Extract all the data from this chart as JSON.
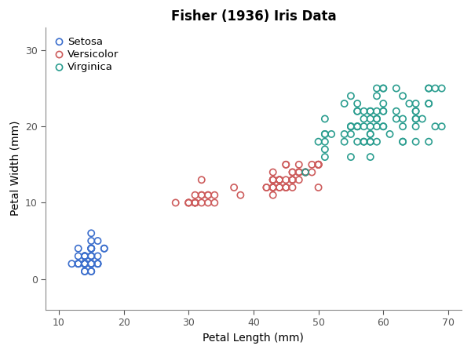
{
  "title": "Fisher (1936) Iris Data",
  "xlabel": "Petal Length (mm)",
  "ylabel": "Petal Width (mm)",
  "xlim": [
    8,
    72
  ],
  "ylim": [
    -4,
    33
  ],
  "xticks": [
    10,
    20,
    30,
    40,
    50,
    60,
    70
  ],
  "yticks": [
    0,
    10,
    20,
    30
  ],
  "legend_frameon": false,
  "species": {
    "Setosa": {
      "color": "#3c6fcd",
      "petal_length": [
        14,
        14,
        13,
        15,
        14,
        17,
        14,
        15,
        14,
        15,
        15,
        14,
        14,
        14,
        16,
        17,
        15,
        14,
        15,
        14,
        13,
        15,
        14,
        16,
        14,
        16,
        15,
        14,
        15,
        14,
        14,
        15,
        14,
        15,
        16,
        16,
        14,
        14,
        14,
        15,
        15,
        13,
        14,
        15,
        15,
        14,
        12,
        13,
        13,
        15
      ],
      "petal_width": [
        2,
        2,
        2,
        2,
        2,
        4,
        3,
        2,
        2,
        1,
        2,
        2,
        1,
        1,
        2,
        4,
        4,
        3,
        3,
        3,
        2,
        4,
        2,
        5,
        2,
        3,
        4,
        2,
        2,
        2,
        2,
        5,
        2,
        1,
        2,
        2,
        3,
        2,
        2,
        3,
        3,
        3,
        2,
        6,
        4,
        3,
        2,
        2,
        4,
        2
      ]
    },
    "Versicolor": {
      "color": "#cd5c5c",
      "petal_length": [
        47,
        45,
        49,
        43,
        44,
        48,
        50,
        44,
        48,
        43,
        43,
        42,
        43,
        46,
        47,
        43,
        46,
        44,
        50,
        46,
        46,
        47,
        43,
        45,
        46,
        45,
        47,
        44,
        50,
        45,
        44,
        45,
        46,
        43,
        47,
        48,
        48,
        43,
        50,
        49,
        47,
        42,
        43,
        44,
        50,
        43,
        46,
        45,
        50,
        38,
        32,
        31,
        31,
        34,
        32,
        31,
        31,
        33,
        34,
        32,
        33,
        37,
        31,
        30,
        32,
        33,
        28,
        30,
        30
      ],
      "petal_width": [
        14,
        15,
        15,
        13,
        13,
        14,
        15,
        13,
        14,
        13,
        14,
        12,
        13,
        14,
        14,
        13,
        14,
        13,
        15,
        12,
        13,
        15,
        11,
        13,
        13,
        12,
        14,
        12,
        15,
        12,
        12,
        12,
        13,
        12,
        13,
        14,
        14,
        12,
        15,
        14,
        14,
        12,
        12,
        13,
        15,
        12,
        13,
        15,
        12,
        11,
        13,
        10,
        10,
        10,
        10,
        10,
        10,
        10,
        11,
        11,
        11,
        12,
        11,
        10,
        11,
        11,
        10,
        10,
        10
      ]
    },
    "Virginica": {
      "color": "#2a9d8f",
      "petal_length": [
        60,
        51,
        59,
        56,
        58,
        65,
        65,
        55,
        52,
        58,
        59,
        60,
        54,
        51,
        59,
        58,
        68,
        51,
        56,
        57,
        51,
        57,
        65,
        63,
        58,
        56,
        57,
        63,
        66,
        56,
        57,
        67,
        69,
        56,
        65,
        62,
        59,
        55,
        55,
        58,
        62,
        51,
        50,
        55,
        55,
        54,
        60,
        59,
        60,
        67,
        63,
        58,
        56,
        63,
        51,
        56,
        55,
        48,
        58,
        54,
        60,
        69,
        67,
        58,
        65,
        57,
        63,
        58,
        64,
        65,
        67,
        65,
        68,
        67,
        60,
        62,
        59,
        61,
        59,
        60
      ],
      "petal_width": [
        25,
        19,
        21,
        18,
        22,
        23,
        22,
        20,
        19,
        20,
        25,
        23,
        23,
        17,
        22,
        22,
        20,
        16,
        20,
        18,
        19,
        18,
        18,
        21,
        16,
        23,
        22,
        20,
        21,
        20,
        21,
        25,
        25,
        22,
        20,
        21,
        18,
        19,
        16,
        19,
        25,
        21,
        18,
        20,
        20,
        19,
        22,
        21,
        22,
        18,
        18,
        19,
        20,
        24,
        18,
        22,
        24,
        14,
        21,
        18,
        20,
        20,
        23,
        18,
        21,
        20,
        18,
        18,
        23,
        21,
        25,
        22,
        25,
        23,
        20,
        22,
        20,
        19,
        24,
        25
      ]
    }
  }
}
